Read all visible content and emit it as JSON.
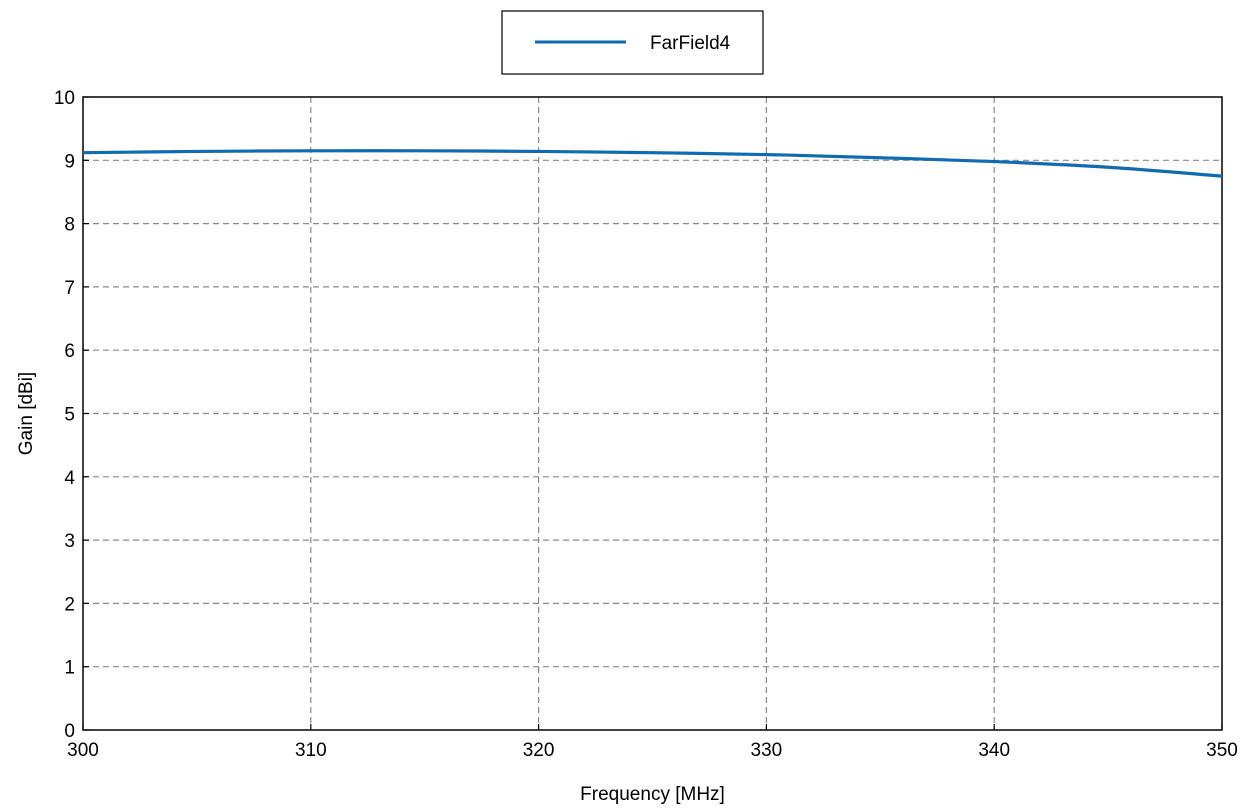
{
  "chart_data": {
    "type": "line",
    "xlabel": "Frequency [MHz]",
    "ylabel": "Gain [dBi]",
    "xlim": [
      300,
      350
    ],
    "ylim": [
      0,
      10
    ],
    "x_ticks": [
      300,
      310,
      320,
      330,
      340,
      350
    ],
    "y_ticks": [
      0,
      1,
      2,
      3,
      4,
      5,
      6,
      7,
      8,
      9,
      10
    ],
    "grid": true,
    "legend_position": "top-center",
    "series": [
      {
        "name": "FarField4",
        "color": "#0f6cb0",
        "x": [
          300,
          305,
          310,
          315,
          320,
          325,
          330,
          335,
          340,
          345,
          350
        ],
        "y": [
          9.12,
          9.14,
          9.15,
          9.15,
          9.14,
          9.12,
          9.09,
          9.04,
          8.98,
          8.89,
          8.75
        ]
      }
    ]
  }
}
